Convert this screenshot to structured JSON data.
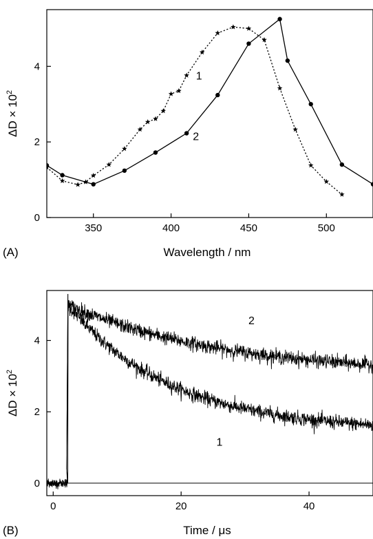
{
  "chart_data": [
    {
      "type": "line",
      "panel_label": "(A)",
      "xlabel": "Wavelength / nm",
      "ylabel_base": "ΔD × 10",
      "ylabel_exp": "2",
      "xlim": [
        320,
        530
      ],
      "ylim": [
        0,
        5.5
      ],
      "xticks": [
        350,
        400,
        450,
        500
      ],
      "yticks": [
        0,
        2,
        4
      ],
      "grid": false,
      "series": [
        {
          "name": "1",
          "style": "dotted",
          "marker": "star",
          "color": "#000000",
          "points": [
            [
              320,
              1.33
            ],
            [
              330,
              0.97
            ],
            [
              340,
              0.87
            ],
            [
              345,
              0.94
            ],
            [
              350,
              1.11
            ],
            [
              360,
              1.4
            ],
            [
              370,
              1.82
            ],
            [
              380,
              2.33
            ],
            [
              385,
              2.53
            ],
            [
              390,
              2.61
            ],
            [
              395,
              2.82
            ],
            [
              400,
              3.27
            ],
            [
              405,
              3.35
            ],
            [
              410,
              3.76
            ],
            [
              420,
              4.37
            ],
            [
              430,
              4.88
            ],
            [
              440,
              5.04
            ],
            [
              450,
              5.0
            ],
            [
              460,
              4.7
            ],
            [
              470,
              3.42
            ],
            [
              480,
              2.33
            ],
            [
              490,
              1.38
            ],
            [
              500,
              0.95
            ],
            [
              510,
              0.61
            ]
          ],
          "label_at": [
            418,
            3.65
          ]
        },
        {
          "name": "2",
          "style": "solid",
          "marker": "circle",
          "color": "#000000",
          "points": [
            [
              320,
              1.38
            ],
            [
              330,
              1.12
            ],
            [
              350,
              0.88
            ],
            [
              370,
              1.24
            ],
            [
              390,
              1.72
            ],
            [
              410,
              2.23
            ],
            [
              430,
              3.24
            ],
            [
              450,
              4.6
            ],
            [
              470,
              5.25
            ],
            [
              475,
              4.15
            ],
            [
              490,
              3.0
            ],
            [
              510,
              1.4
            ],
            [
              530,
              0.88
            ]
          ],
          "label_at": [
            416,
            2.05
          ]
        }
      ]
    },
    {
      "type": "line",
      "panel_label": "(B)",
      "xlabel": "Time / μs",
      "ylabel_base": "ΔD × 10",
      "ylabel_exp": "2",
      "xlim": [
        -1,
        50
      ],
      "ylim": [
        -0.35,
        5.4
      ],
      "xticks": [
        0,
        20,
        40
      ],
      "yticks": [
        0,
        2,
        4
      ],
      "grid": false,
      "baseline": 0,
      "series": [
        {
          "name": "1",
          "style": "solid",
          "marker": "none",
          "color": "#000000",
          "kinetics": {
            "t0": 2.3,
            "start": 5.0,
            "plateau": 1.45,
            "tau": 16.0,
            "noise": 0.11
          },
          "label_at": [
            26,
            1.05
          ]
        },
        {
          "name": "2",
          "style": "solid",
          "marker": "none",
          "color": "#000000",
          "kinetics": {
            "t0": 2.3,
            "start": 5.0,
            "plateau": 3.05,
            "tau": 24.0,
            "noise": 0.11
          },
          "label_at": [
            31,
            4.45
          ]
        }
      ]
    }
  ]
}
